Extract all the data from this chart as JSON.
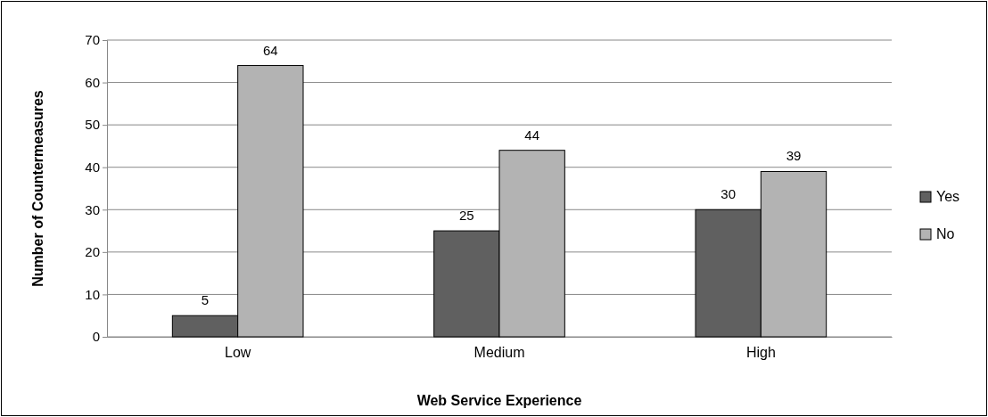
{
  "chart_data": {
    "type": "bar",
    "xlabel": "Web Service Experience",
    "ylabel": "Number of Countermeasures",
    "categories": [
      "Low",
      "Medium",
      "High"
    ],
    "series": [
      {
        "name": "Yes",
        "color": "#606060",
        "values": [
          5,
          25,
          30
        ]
      },
      {
        "name": "No",
        "color": "#b3b3b3",
        "values": [
          64,
          44,
          39
        ]
      }
    ],
    "ylim": [
      0,
      70
    ],
    "yticks": [
      0,
      10,
      20,
      30,
      40,
      50,
      60,
      70
    ],
    "grid": "y",
    "legend": "right",
    "data_labels": true
  }
}
